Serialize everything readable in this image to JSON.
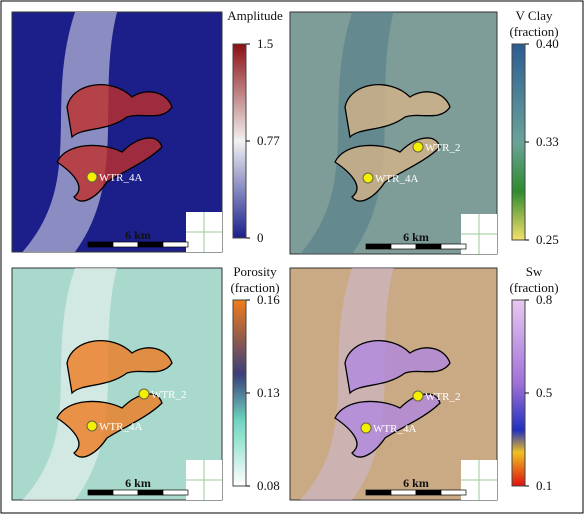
{
  "panels": [
    {
      "colorbar": {
        "title": [
          "Amplitude"
        ],
        "ticks": [
          "1.5",
          "0.77",
          "0"
        ]
      },
      "wells": [
        "WTR_4A"
      ],
      "scale": "6 km"
    },
    {
      "colorbar": {
        "title": [
          "V Clay",
          "(fraction)"
        ],
        "ticks": [
          "0.40",
          "0.33",
          "0.25"
        ]
      },
      "wells": [
        "WTR_2",
        "WTR_4A"
      ],
      "scale": "6 km"
    },
    {
      "colorbar": {
        "title": [
          "Porosity",
          "(fraction)"
        ],
        "ticks": [
          "0.16",
          "0.13",
          "0.08"
        ]
      },
      "wells": [
        "WTR_2",
        "WTR_4A"
      ],
      "scale": "6 km"
    },
    {
      "colorbar": {
        "title": [
          "Sw",
          "(fraction)"
        ],
        "ticks": [
          "0.8",
          "0.5",
          "0.1"
        ]
      },
      "wells": [
        "WTR_2",
        "WTR_4A"
      ],
      "scale": "6 km"
    }
  ]
}
